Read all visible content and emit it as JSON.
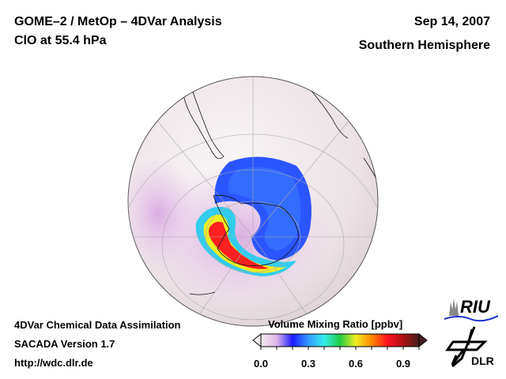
{
  "header": {
    "title_line1": "GOME–2 / MetOp – 4DVar Analysis",
    "title_line2": "ClO at 55.4 hPa",
    "date": "Sep 14, 2007",
    "region": "Southern Hemisphere"
  },
  "footer": {
    "line1": "4DVar Chemical Data Assimilation",
    "line2": "SACADA Version 1.7",
    "line3": "http://wdc.dlr.de"
  },
  "colorbar": {
    "label": "Volume Mixing Ratio [ppbv]",
    "range": [
      0.0,
      1.0
    ],
    "ticks": [
      "0.0",
      "0.3",
      "0.6",
      "0.9"
    ],
    "tick_values": [
      0.0,
      0.3,
      0.6,
      0.9
    ],
    "colors": [
      "#f4eef0",
      "#e0b8e8",
      "#1a1aff",
      "#3399ff",
      "#33eeee",
      "#22cc44",
      "#eeee22",
      "#ff8800",
      "#ff1122",
      "#aa1111",
      "#442020"
    ]
  },
  "logos": {
    "riu": "RIU",
    "dlr": "DLR"
  }
}
